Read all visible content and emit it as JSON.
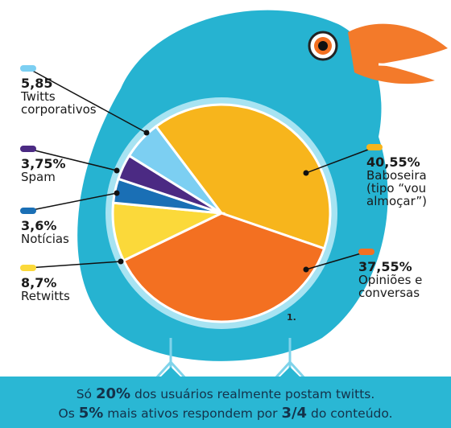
{
  "chart_data": {
    "type": "pie",
    "categories": [
      "Baboseira (tipo “vou almoçar”)",
      "Opiniões e conversas",
      "Retwitts",
      "Notícias",
      "Spam",
      "Twitts corporativos"
    ],
    "values": [
      40.55,
      37.55,
      8.7,
      3.6,
      3.75,
      5.85
    ],
    "value_labels": [
      "40,55%",
      "37,55%",
      "8,7%",
      "3,6%",
      "3,75%",
      "5,85"
    ],
    "colors": [
      "#f7b51c",
      "#f37021",
      "#fbd93a",
      "#1a6fb5",
      "#4b2a83",
      "#7ccff2"
    ],
    "annotation": "1."
  },
  "footer": {
    "line1": [
      "Só ",
      "20%",
      " dos usuários realmente postam twitts."
    ],
    "line2": [
      "Os ",
      "5%",
      " mais ativos respondem por ",
      "3/4",
      " do conteúdo."
    ]
  }
}
